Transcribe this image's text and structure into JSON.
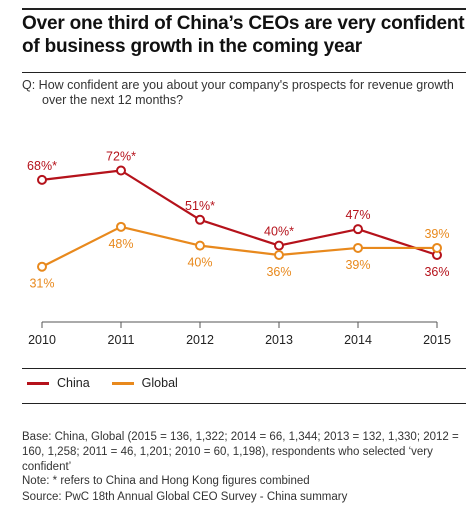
{
  "title": "Over one third of China’s CEOs are very confident of business growth in the coming year",
  "question": {
    "line1": "Q: How confident are you about your company's prospects for revenue growth",
    "line2": "over the next 12 months?"
  },
  "colors": {
    "china": "#b5121b",
    "global": "#e8891d",
    "axis": "#555555",
    "text": "#222222"
  },
  "chart_data": {
    "type": "line",
    "x": [
      "2010",
      "2011",
      "2012",
      "2013",
      "2014",
      "2015"
    ],
    "series": [
      {
        "name": "China",
        "values": [
          68,
          72,
          51,
          40,
          47,
          36
        ],
        "labels": [
          "68%*",
          "72%*",
          "51%*",
          "40%*",
          "47%",
          "36%"
        ],
        "color": "#b5121b"
      },
      {
        "name": "Global",
        "values": [
          31,
          48,
          40,
          36,
          39,
          39
        ],
        "labels": [
          "31%",
          "48%",
          "40%",
          "36%",
          "39%",
          "39%"
        ],
        "color": "#e8891d"
      }
    ],
    "ylim": [
      10,
      85
    ],
    "legend_position": "bottom-left",
    "grid": false
  },
  "legend": [
    {
      "label": "China"
    },
    {
      "label": "Global"
    }
  ],
  "footer": {
    "base": "Base: China, Global (2015 = 136, 1,322; 2014 = 66, 1,344; 2013 = 132, 1,330; 2012 = 160, 1,258; 2011 = 46, 1,201; 2010 = 60, 1,198), respondents who selected ‘very confident’",
    "note": "Note: * refers to China and Hong Kong figures combined",
    "source": "Source: PwC 18th Annual Global CEO Survey - China summary"
  }
}
